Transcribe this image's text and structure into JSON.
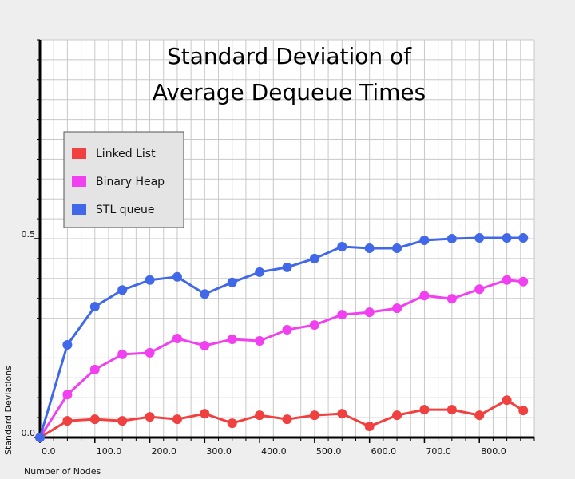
{
  "chart_data": {
    "type": "line",
    "title": [
      "Standard Deviation of",
      "Average Dequeue Times"
    ],
    "x_label": "Number of Nodes",
    "y_label": "Standard Deviations",
    "x": [
      0,
      50,
      100,
      150,
      200,
      250,
      300,
      350,
      400,
      450,
      500,
      550,
      600,
      650,
      700,
      750,
      800,
      850,
      880
    ],
    "series": [
      {
        "name": "Linked List",
        "color": "#f04040",
        "values": [
          0,
          0.042,
          0.046,
          0.042,
          0.052,
          0.046,
          0.06,
          0.036,
          0.056,
          0.046,
          0.056,
          0.06,
          0.028,
          0.056,
          0.07,
          0.07,
          0.056,
          0.094,
          0.068
        ]
      },
      {
        "name": "Binary Heap",
        "color": "#f040f0",
        "values": [
          0,
          0.108,
          0.171,
          0.209,
          0.213,
          0.249,
          0.231,
          0.247,
          0.243,
          0.271,
          0.283,
          0.309,
          0.315,
          0.325,
          0.357,
          0.349,
          0.373,
          0.396,
          0.392
        ]
      },
      {
        "name": "STL queue",
        "color": "#4068e8",
        "values": [
          0,
          0.233,
          0.329,
          0.371,
          0.396,
          0.404,
          0.361,
          0.39,
          0.416,
          0.428,
          0.45,
          0.48,
          0.476,
          0.476,
          0.496,
          0.5,
          0.502,
          0.502,
          0.502
        ]
      }
    ],
    "xlim": [
      0,
      900
    ],
    "ylim": [
      0,
      1.0
    ],
    "xticks": [
      {
        "value": 0,
        "label": "0.0"
      },
      {
        "value": 100,
        "label": "100.0"
      },
      {
        "value": 200,
        "label": "200.0"
      },
      {
        "value": 300,
        "label": "300.0"
      },
      {
        "value": 400,
        "label": "400.0"
      },
      {
        "value": 500,
        "label": "500.0"
      },
      {
        "value": 600,
        "label": "600.0"
      },
      {
        "value": 700,
        "label": "700.0"
      },
      {
        "value": 800,
        "label": "800.0"
      }
    ],
    "yticks": [
      {
        "value": 0,
        "label": "0.0"
      },
      {
        "value": 0.5,
        "label": "0.5"
      }
    ],
    "xminor_ticks": [
      25,
      50,
      75,
      100,
      125,
      150,
      175,
      200,
      225,
      250,
      275,
      300,
      325,
      350,
      375,
      400,
      425,
      450,
      475,
      500,
      525,
      550,
      575,
      600,
      625,
      650,
      675,
      700,
      725,
      750,
      775,
      800,
      825,
      850,
      875,
      900
    ],
    "yminor_ticks": [
      0.05,
      0.1,
      0.15,
      0.2,
      0.25,
      0.3,
      0.35,
      0.4,
      0.45,
      0.5,
      0.55,
      0.6,
      0.65,
      0.7,
      0.75,
      0.8,
      0.85,
      0.9,
      0.95,
      1.0
    ],
    "grid": true,
    "legend": "upper-left"
  }
}
